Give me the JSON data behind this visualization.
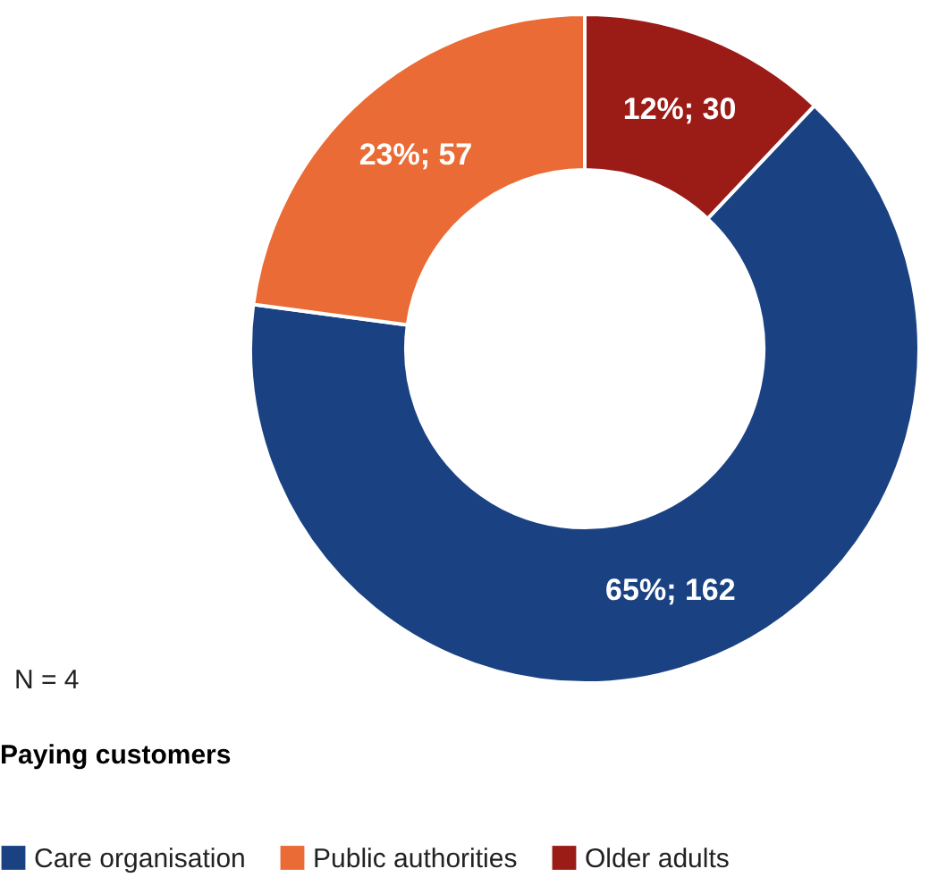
{
  "chart_data": {
    "type": "donut",
    "categories": [
      "Care organisation",
      "Public authorities",
      "Older adults"
    ],
    "values": [
      162,
      57,
      30
    ],
    "colors": [
      "#1a4282",
      "#ea6b35",
      "#9b1b16"
    ],
    "value_labels": [
      "65%; 162",
      "23%; 57",
      "12%; 30"
    ],
    "legend_title": "Paying customers",
    "legend": "bottom",
    "annotations": [
      "N = 4"
    ]
  }
}
